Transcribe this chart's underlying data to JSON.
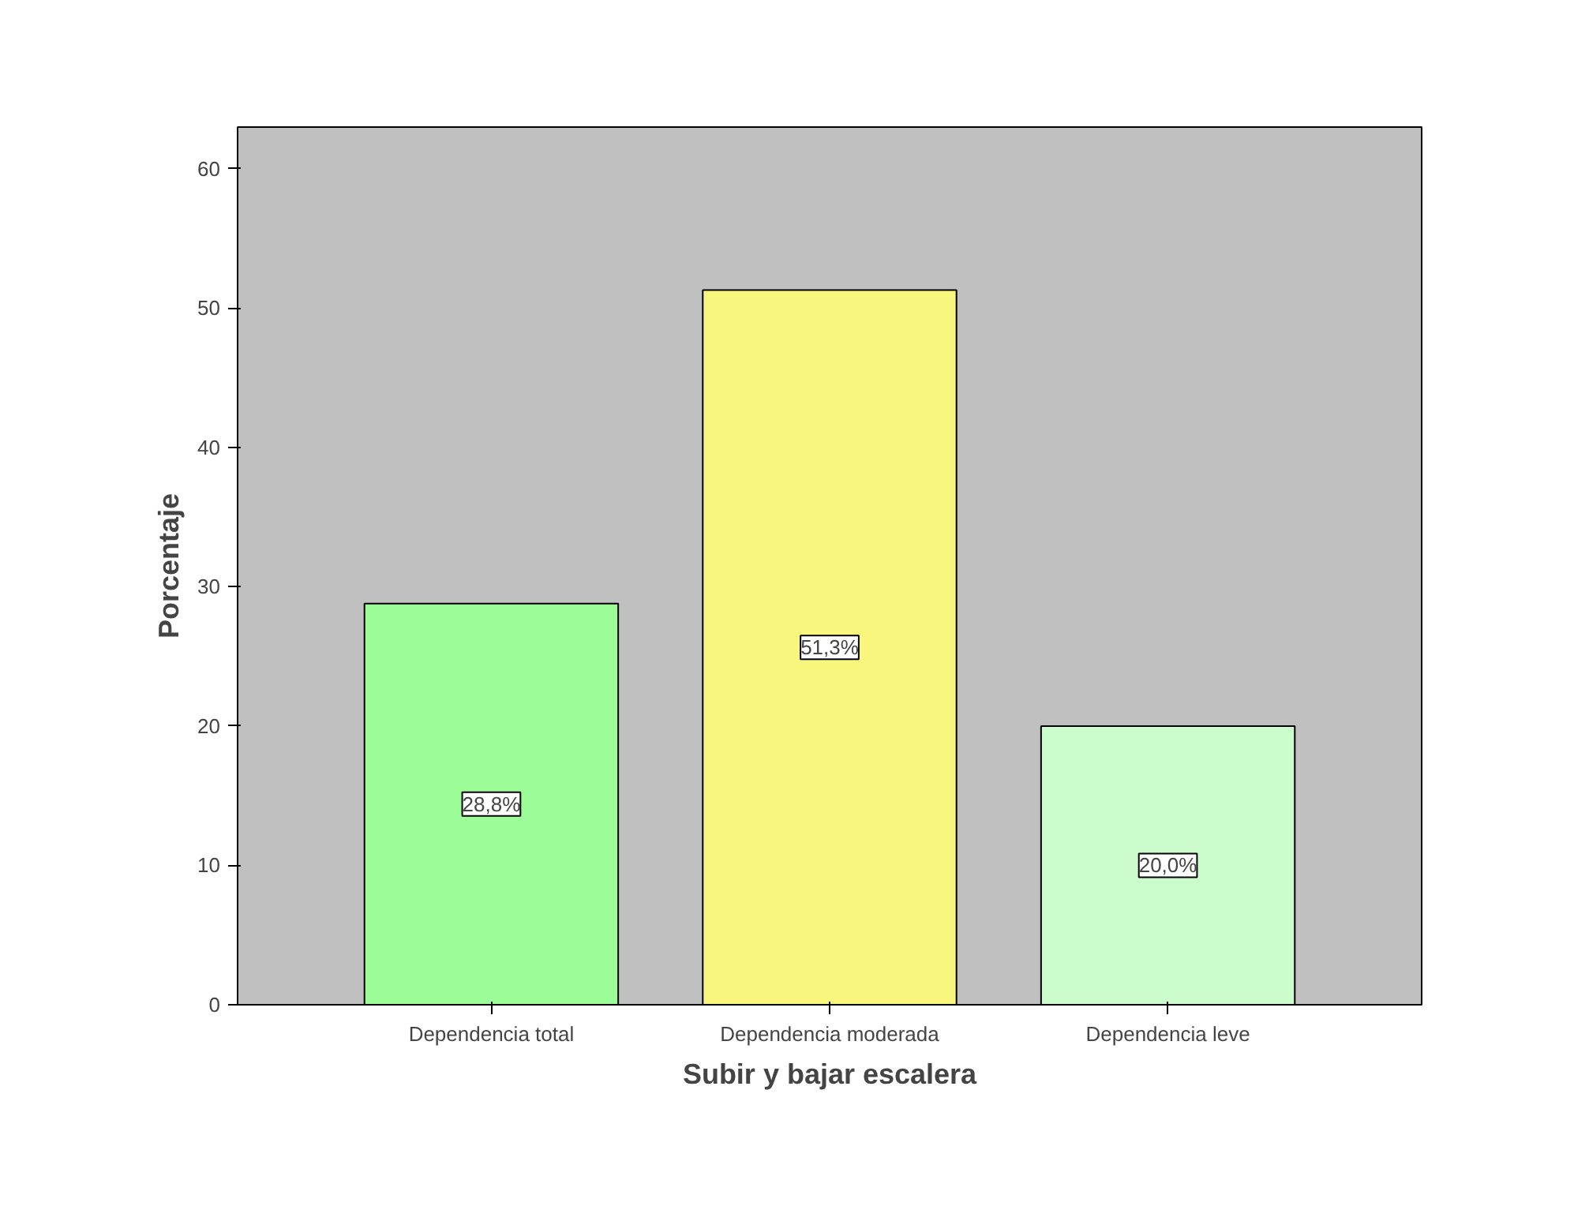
{
  "chart_data": {
    "type": "bar",
    "xlabel": "Subir y bajar escalera",
    "ylabel": "Porcentaje",
    "categories": [
      "Dependencia total",
      "Dependencia moderada",
      "Dependencia leve"
    ],
    "values": [
      28.8,
      51.3,
      20.0
    ],
    "colors": [
      "#9cfc97",
      "#f8f67c",
      "#ccfccc"
    ],
    "value_labels": [
      "28,8%",
      "51,3%",
      "20,0%"
    ],
    "ylim": [
      0,
      63
    ],
    "yticks": [
      0,
      10,
      20,
      30,
      40,
      50,
      60
    ],
    "grid": false
  }
}
